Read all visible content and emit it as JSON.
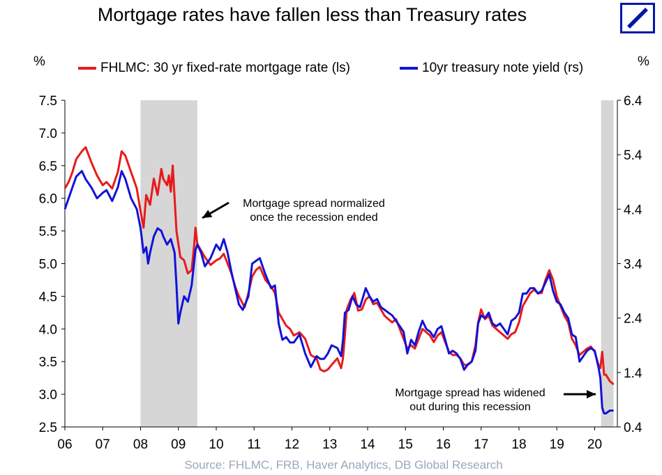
{
  "title": "Mortgage rates have fallen less than Treasury rates",
  "source": "Source: FHLMC, FRB, Haver Analytics, DB Global Research",
  "colors": {
    "mortgage": "#e81a1a",
    "treasury": "#1212d8",
    "recession": "#d6d6d6",
    "logo": "#0018a8"
  },
  "chart_data": {
    "type": "line",
    "title": "Mortgage rates have fallen less than Treasury rates",
    "left_axis_label": "%",
    "right_axis_label": "%",
    "x_tick_labels": [
      "06",
      "07",
      "08",
      "09",
      "10",
      "11",
      "12",
      "13",
      "14",
      "15",
      "16",
      "17",
      "18",
      "19",
      "20"
    ],
    "xlim": [
      2006.0,
      2020.6
    ],
    "ylim_left": [
      2.5,
      7.5
    ],
    "ylim_right": [
      0.4,
      6.4
    ],
    "left_ticks": [
      "2.5",
      "3.0",
      "3.5",
      "4.0",
      "4.5",
      "5.0",
      "5.5",
      "6.0",
      "6.5",
      "7.0",
      "7.5"
    ],
    "right_ticks": [
      "0.4",
      "1.4",
      "2.4",
      "3.4",
      "4.4",
      "5.4",
      "6.4"
    ],
    "recessions": [
      [
        2008.0,
        2009.5
      ],
      [
        2020.17,
        2020.5
      ]
    ],
    "annotations": [
      {
        "line1": "Mortgage spread normalized",
        "line2": "once the recession ended"
      },
      {
        "line1": "Mortgage spread has widened",
        "line2": "out during this recession"
      }
    ],
    "series": [
      {
        "name": "FHLMC: 30 yr fixed-rate mortgage rate (ls)",
        "axis": "left",
        "points": [
          [
            2006.0,
            6.15
          ],
          [
            2006.1,
            6.25
          ],
          [
            2006.2,
            6.4
          ],
          [
            2006.3,
            6.6
          ],
          [
            2006.45,
            6.72
          ],
          [
            2006.55,
            6.78
          ],
          [
            2006.7,
            6.55
          ],
          [
            2006.85,
            6.35
          ],
          [
            2007.0,
            6.2
          ],
          [
            2007.1,
            6.25
          ],
          [
            2007.25,
            6.15
          ],
          [
            2007.4,
            6.4
          ],
          [
            2007.5,
            6.72
          ],
          [
            2007.6,
            6.65
          ],
          [
            2007.75,
            6.4
          ],
          [
            2007.9,
            6.15
          ],
          [
            2008.0,
            5.8
          ],
          [
            2008.08,
            5.55
          ],
          [
            2008.15,
            6.05
          ],
          [
            2008.25,
            5.9
          ],
          [
            2008.35,
            6.3
          ],
          [
            2008.45,
            6.05
          ],
          [
            2008.55,
            6.45
          ],
          [
            2008.6,
            6.3
          ],
          [
            2008.7,
            6.2
          ],
          [
            2008.75,
            6.35
          ],
          [
            2008.8,
            6.1
          ],
          [
            2008.85,
            6.5
          ],
          [
            2008.9,
            6.0
          ],
          [
            2008.95,
            5.5
          ],
          [
            2009.05,
            5.1
          ],
          [
            2009.15,
            5.05
          ],
          [
            2009.25,
            4.85
          ],
          [
            2009.35,
            4.9
          ],
          [
            2009.42,
            5.3
          ],
          [
            2009.45,
            5.55
          ],
          [
            2009.5,
            5.3
          ],
          [
            2009.6,
            5.2
          ],
          [
            2009.7,
            5.1
          ],
          [
            2009.85,
            4.98
          ],
          [
            2010.0,
            5.05
          ],
          [
            2010.1,
            5.08
          ],
          [
            2010.2,
            5.15
          ],
          [
            2010.3,
            5.0
          ],
          [
            2010.4,
            4.85
          ],
          [
            2010.5,
            4.65
          ],
          [
            2010.6,
            4.5
          ],
          [
            2010.75,
            4.33
          ],
          [
            2010.85,
            4.55
          ],
          [
            2010.95,
            4.8
          ],
          [
            2011.05,
            4.9
          ],
          [
            2011.15,
            4.95
          ],
          [
            2011.3,
            4.75
          ],
          [
            2011.45,
            4.65
          ],
          [
            2011.55,
            4.55
          ],
          [
            2011.65,
            4.25
          ],
          [
            2011.75,
            4.15
          ],
          [
            2011.85,
            4.05
          ],
          [
            2011.95,
            4.0
          ],
          [
            2012.05,
            3.9
          ],
          [
            2012.2,
            3.95
          ],
          [
            2012.35,
            3.85
          ],
          [
            2012.5,
            3.6
          ],
          [
            2012.65,
            3.55
          ],
          [
            2012.75,
            3.38
          ],
          [
            2012.85,
            3.35
          ],
          [
            2012.95,
            3.38
          ],
          [
            2013.05,
            3.45
          ],
          [
            2013.2,
            3.55
          ],
          [
            2013.3,
            3.4
          ],
          [
            2013.35,
            3.55
          ],
          [
            2013.4,
            3.9
          ],
          [
            2013.45,
            4.3
          ],
          [
            2013.55,
            4.45
          ],
          [
            2013.65,
            4.55
          ],
          [
            2013.75,
            4.28
          ],
          [
            2013.85,
            4.3
          ],
          [
            2013.95,
            4.45
          ],
          [
            2014.05,
            4.5
          ],
          [
            2014.15,
            4.38
          ],
          [
            2014.25,
            4.4
          ],
          [
            2014.35,
            4.3
          ],
          [
            2014.45,
            4.2
          ],
          [
            2014.55,
            4.15
          ],
          [
            2014.65,
            4.1
          ],
          [
            2014.75,
            4.15
          ],
          [
            2014.85,
            4.0
          ],
          [
            2014.95,
            3.85
          ],
          [
            2015.05,
            3.7
          ],
          [
            2015.15,
            3.75
          ],
          [
            2015.25,
            3.7
          ],
          [
            2015.35,
            3.85
          ],
          [
            2015.45,
            4.0
          ],
          [
            2015.55,
            3.95
          ],
          [
            2015.65,
            3.9
          ],
          [
            2015.75,
            3.8
          ],
          [
            2015.85,
            3.9
          ],
          [
            2015.95,
            3.95
          ],
          [
            2016.05,
            3.8
          ],
          [
            2016.15,
            3.65
          ],
          [
            2016.25,
            3.6
          ],
          [
            2016.35,
            3.6
          ],
          [
            2016.45,
            3.55
          ],
          [
            2016.55,
            3.45
          ],
          [
            2016.65,
            3.45
          ],
          [
            2016.75,
            3.5
          ],
          [
            2016.85,
            3.75
          ],
          [
            2016.92,
            4.1
          ],
          [
            2017.0,
            4.3
          ],
          [
            2017.1,
            4.15
          ],
          [
            2017.2,
            4.2
          ],
          [
            2017.3,
            4.05
          ],
          [
            2017.4,
            4.0
          ],
          [
            2017.5,
            3.95
          ],
          [
            2017.6,
            3.9
          ],
          [
            2017.7,
            3.85
          ],
          [
            2017.8,
            3.92
          ],
          [
            2017.9,
            3.95
          ],
          [
            2018.0,
            4.1
          ],
          [
            2018.1,
            4.35
          ],
          [
            2018.2,
            4.45
          ],
          [
            2018.3,
            4.55
          ],
          [
            2018.4,
            4.6
          ],
          [
            2018.5,
            4.55
          ],
          [
            2018.6,
            4.55
          ],
          [
            2018.7,
            4.75
          ],
          [
            2018.8,
            4.9
          ],
          [
            2018.9,
            4.75
          ],
          [
            2019.0,
            4.5
          ],
          [
            2019.1,
            4.35
          ],
          [
            2019.2,
            4.2
          ],
          [
            2019.3,
            4.1
          ],
          [
            2019.4,
            3.85
          ],
          [
            2019.5,
            3.75
          ],
          [
            2019.6,
            3.6
          ],
          [
            2019.7,
            3.65
          ],
          [
            2019.8,
            3.7
          ],
          [
            2019.9,
            3.73
          ],
          [
            2020.0,
            3.65
          ],
          [
            2020.1,
            3.45
          ],
          [
            2020.15,
            3.4
          ],
          [
            2020.2,
            3.65
          ],
          [
            2020.25,
            3.3
          ],
          [
            2020.3,
            3.3
          ],
          [
            2020.4,
            3.2
          ],
          [
            2020.5,
            3.15
          ]
        ]
      },
      {
        "name": "10yr treasury note yield (rs)",
        "axis": "right",
        "points": [
          [
            2006.0,
            4.4
          ],
          [
            2006.1,
            4.6
          ],
          [
            2006.2,
            4.8
          ],
          [
            2006.3,
            5.0
          ],
          [
            2006.45,
            5.1
          ],
          [
            2006.55,
            4.95
          ],
          [
            2006.7,
            4.8
          ],
          [
            2006.85,
            4.6
          ],
          [
            2007.0,
            4.7
          ],
          [
            2007.1,
            4.75
          ],
          [
            2007.25,
            4.55
          ],
          [
            2007.4,
            4.8
          ],
          [
            2007.5,
            5.1
          ],
          [
            2007.6,
            4.95
          ],
          [
            2007.75,
            4.6
          ],
          [
            2007.9,
            4.4
          ],
          [
            2008.0,
            4.05
          ],
          [
            2008.08,
            3.6
          ],
          [
            2008.15,
            3.7
          ],
          [
            2008.2,
            3.4
          ],
          [
            2008.25,
            3.6
          ],
          [
            2008.35,
            3.9
          ],
          [
            2008.45,
            4.05
          ],
          [
            2008.55,
            4.0
          ],
          [
            2008.6,
            3.9
          ],
          [
            2008.7,
            3.75
          ],
          [
            2008.8,
            3.85
          ],
          [
            2008.9,
            3.6
          ],
          [
            2008.95,
            3.0
          ],
          [
            2009.0,
            2.3
          ],
          [
            2009.05,
            2.5
          ],
          [
            2009.15,
            2.8
          ],
          [
            2009.25,
            2.7
          ],
          [
            2009.35,
            3.0
          ],
          [
            2009.45,
            3.65
          ],
          [
            2009.5,
            3.75
          ],
          [
            2009.6,
            3.6
          ],
          [
            2009.7,
            3.35
          ],
          [
            2009.85,
            3.5
          ],
          [
            2010.0,
            3.75
          ],
          [
            2010.1,
            3.65
          ],
          [
            2010.2,
            3.85
          ],
          [
            2010.3,
            3.6
          ],
          [
            2010.4,
            3.25
          ],
          [
            2010.5,
            2.95
          ],
          [
            2010.6,
            2.65
          ],
          [
            2010.7,
            2.55
          ],
          [
            2010.85,
            2.8
          ],
          [
            2010.95,
            3.4
          ],
          [
            2011.05,
            3.45
          ],
          [
            2011.15,
            3.5
          ],
          [
            2011.3,
            3.2
          ],
          [
            2011.45,
            2.95
          ],
          [
            2011.55,
            3.0
          ],
          [
            2011.65,
            2.3
          ],
          [
            2011.75,
            2.0
          ],
          [
            2011.85,
            2.05
          ],
          [
            2011.95,
            1.95
          ],
          [
            2012.05,
            1.95
          ],
          [
            2012.2,
            2.1
          ],
          [
            2012.35,
            1.75
          ],
          [
            2012.5,
            1.5
          ],
          [
            2012.65,
            1.7
          ],
          [
            2012.75,
            1.65
          ],
          [
            2012.85,
            1.65
          ],
          [
            2012.95,
            1.75
          ],
          [
            2013.05,
            1.9
          ],
          [
            2013.2,
            1.85
          ],
          [
            2013.3,
            1.7
          ],
          [
            2013.35,
            2.0
          ],
          [
            2013.4,
            2.5
          ],
          [
            2013.5,
            2.55
          ],
          [
            2013.6,
            2.8
          ],
          [
            2013.7,
            2.65
          ],
          [
            2013.8,
            2.6
          ],
          [
            2013.95,
            2.95
          ],
          [
            2014.05,
            2.8
          ],
          [
            2014.15,
            2.7
          ],
          [
            2014.25,
            2.75
          ],
          [
            2014.35,
            2.6
          ],
          [
            2014.45,
            2.55
          ],
          [
            2014.55,
            2.5
          ],
          [
            2014.65,
            2.45
          ],
          [
            2014.75,
            2.35
          ],
          [
            2014.85,
            2.25
          ],
          [
            2014.95,
            2.15
          ],
          [
            2015.05,
            1.75
          ],
          [
            2015.15,
            2.0
          ],
          [
            2015.25,
            1.9
          ],
          [
            2015.35,
            2.15
          ],
          [
            2015.45,
            2.35
          ],
          [
            2015.55,
            2.2
          ],
          [
            2015.65,
            2.15
          ],
          [
            2015.75,
            2.05
          ],
          [
            2015.85,
            2.2
          ],
          [
            2015.95,
            2.25
          ],
          [
            2016.05,
            2.0
          ],
          [
            2016.15,
            1.75
          ],
          [
            2016.25,
            1.8
          ],
          [
            2016.35,
            1.75
          ],
          [
            2016.45,
            1.65
          ],
          [
            2016.55,
            1.45
          ],
          [
            2016.65,
            1.55
          ],
          [
            2016.75,
            1.6
          ],
          [
            2016.85,
            1.8
          ],
          [
            2016.92,
            2.3
          ],
          [
            2017.0,
            2.45
          ],
          [
            2017.1,
            2.4
          ],
          [
            2017.2,
            2.5
          ],
          [
            2017.3,
            2.3
          ],
          [
            2017.4,
            2.25
          ],
          [
            2017.5,
            2.3
          ],
          [
            2017.6,
            2.2
          ],
          [
            2017.7,
            2.1
          ],
          [
            2017.8,
            2.35
          ],
          [
            2017.9,
            2.4
          ],
          [
            2018.0,
            2.5
          ],
          [
            2018.1,
            2.85
          ],
          [
            2018.2,
            2.85
          ],
          [
            2018.3,
            2.95
          ],
          [
            2018.4,
            2.95
          ],
          [
            2018.5,
            2.85
          ],
          [
            2018.6,
            2.9
          ],
          [
            2018.7,
            3.05
          ],
          [
            2018.8,
            3.2
          ],
          [
            2018.9,
            2.9
          ],
          [
            2019.0,
            2.7
          ],
          [
            2019.1,
            2.65
          ],
          [
            2019.2,
            2.5
          ],
          [
            2019.3,
            2.4
          ],
          [
            2019.4,
            2.1
          ],
          [
            2019.5,
            2.05
          ],
          [
            2019.6,
            1.6
          ],
          [
            2019.7,
            1.7
          ],
          [
            2019.8,
            1.8
          ],
          [
            2019.9,
            1.85
          ],
          [
            2020.0,
            1.8
          ],
          [
            2020.1,
            1.5
          ],
          [
            2020.15,
            1.3
          ],
          [
            2020.2,
            0.75
          ],
          [
            2020.25,
            0.65
          ],
          [
            2020.3,
            0.65
          ],
          [
            2020.4,
            0.7
          ],
          [
            2020.5,
            0.7
          ]
        ]
      }
    ]
  }
}
